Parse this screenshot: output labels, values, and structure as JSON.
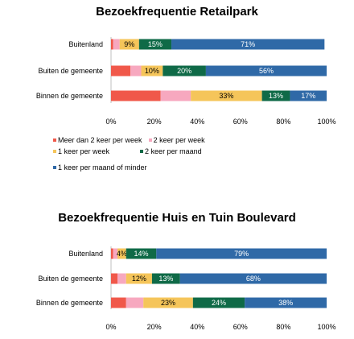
{
  "chart_data": [
    {
      "type": "bar",
      "orientation": "horizontal",
      "stacked": true,
      "title": "Bezoekfrequentie Retailpark",
      "categories": [
        "Buitenland",
        "Buiten de gemeente",
        "Binnen de gemeente"
      ],
      "xlim": [
        0,
        100
      ],
      "x_ticks": [
        "0%",
        "20%",
        "40%",
        "60%",
        "80%",
        "100%"
      ],
      "series": [
        {
          "name": "Meer dan 2 keer per week",
          "values": [
            1,
            9,
            23
          ],
          "labels": [
            "",
            "",
            ""
          ]
        },
        {
          "name": "2 keer per week",
          "values": [
            3,
            5,
            14
          ],
          "labels": [
            "",
            "",
            ""
          ]
        },
        {
          "name": "1 keer per week",
          "values": [
            9,
            10,
            33
          ],
          "labels": [
            "9%",
            "10%",
            "33%"
          ]
        },
        {
          "name": "2 keer per maand",
          "values": [
            15,
            20,
            13
          ],
          "labels": [
            "15%",
            "20%",
            "13%"
          ]
        },
        {
          "name": "1 keer per maand of minder",
          "values": [
            71,
            56,
            17
          ],
          "labels": [
            "71%",
            "56%",
            "17%"
          ]
        }
      ],
      "legend": {
        "position": "bottom"
      }
    },
    {
      "type": "bar",
      "orientation": "horizontal",
      "stacked": true,
      "title": "Bezoekfrequentie Huis en Tuin Boulevard",
      "categories": [
        "Buitenland",
        "Buiten de gemeente",
        "Binnen de gemeente"
      ],
      "xlim": [
        0,
        100
      ],
      "x_ticks": [
        "0%",
        "20%",
        "40%",
        "60%",
        "80%",
        "100%"
      ],
      "series": [
        {
          "name": "Meer dan 2 keer per week",
          "values": [
            1,
            3,
            7
          ],
          "labels": [
            "",
            "",
            ""
          ]
        },
        {
          "name": "2 keer per week",
          "values": [
            2,
            4,
            8
          ],
          "labels": [
            "",
            "",
            ""
          ]
        },
        {
          "name": "1 keer per week",
          "values": [
            4,
            12,
            23
          ],
          "labels": [
            "4%",
            "12%",
            "23%"
          ]
        },
        {
          "name": "2 keer per maand",
          "values": [
            14,
            13,
            24
          ],
          "labels": [
            "14%",
            "13%",
            "24%"
          ]
        },
        {
          "name": "1 keer per maand of minder",
          "values": [
            79,
            68,
            38
          ],
          "labels": [
            "79%",
            "68%",
            "38%"
          ]
        }
      ],
      "legend": {
        "position": "none"
      }
    }
  ],
  "colors": [
    "#f0584a",
    "#f7a8bf",
    "#f5c55a",
    "#0f6a47",
    "#2f69a7"
  ],
  "label_colors": [
    "#ffffff",
    "#000000",
    "#000000",
    "#ffffff",
    "#ffffff"
  ]
}
